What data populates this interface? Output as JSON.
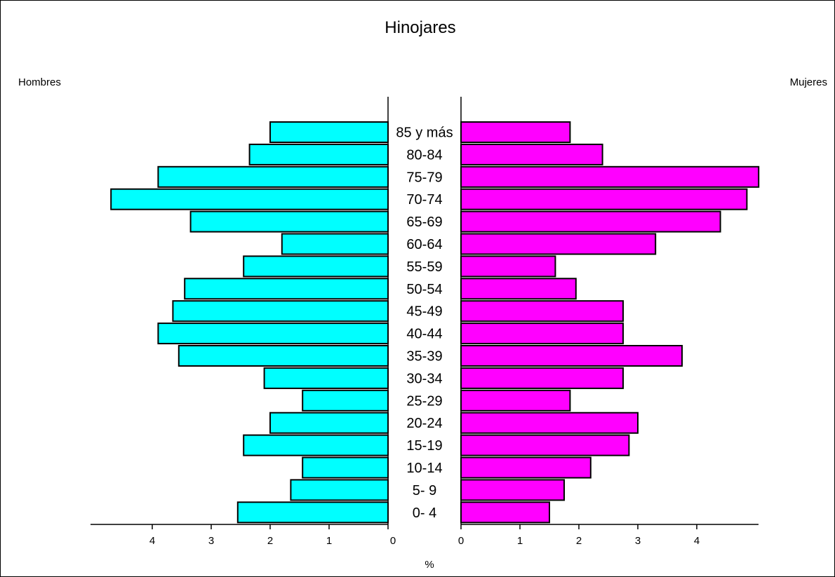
{
  "chart_data": {
    "type": "bar",
    "title": "Hinojares",
    "xlabel": "%",
    "categories": [
      "85 y más",
      "80-84",
      "75-79",
      "70-74",
      "65-69",
      "60-64",
      "55-59",
      "50-54",
      "45-49",
      "40-44",
      "35-39",
      "30-34",
      "25-29",
      "20-24",
      "15-19",
      "10-14",
      "5- 9",
      "0- 4"
    ],
    "series": [
      {
        "name": "Hombres",
        "color": "#00ffff",
        "values": [
          2.0,
          2.35,
          3.9,
          4.7,
          3.35,
          1.8,
          2.45,
          3.45,
          3.65,
          3.9,
          3.55,
          2.1,
          1.45,
          2.0,
          2.45,
          1.45,
          1.65,
          2.55
        ]
      },
      {
        "name": "Mujeres",
        "color": "#ff00ff",
        "values": [
          1.85,
          2.4,
          5.05,
          4.85,
          4.4,
          3.3,
          1.6,
          1.95,
          2.75,
          2.75,
          3.75,
          2.75,
          1.85,
          3.0,
          2.85,
          2.2,
          1.75,
          1.5
        ]
      }
    ],
    "xlim_left": [
      0,
      5
    ],
    "xlim_right": [
      0,
      5
    ],
    "xticks": [
      "4",
      "3",
      "2",
      "1",
      "0"
    ],
    "xticks_right": [
      "0",
      "1",
      "2",
      "3",
      "4"
    ],
    "grid": false,
    "legend": "side labels"
  }
}
